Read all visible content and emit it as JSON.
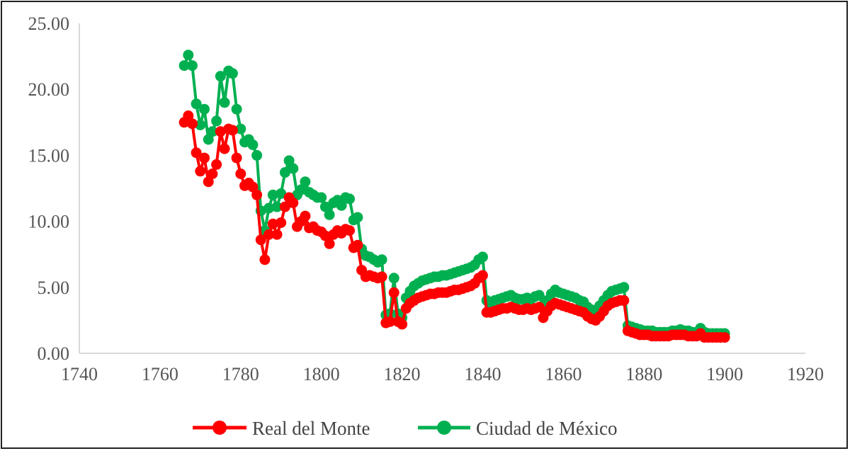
{
  "chart_data": {
    "type": "line",
    "title": "",
    "xlabel": "",
    "ylabel": "",
    "xlim": [
      1740,
      1920
    ],
    "ylim": [
      0,
      25
    ],
    "x_ticks": [
      "1740",
      "1760",
      "1780",
      "1800",
      "1820",
      "1840",
      "1860",
      "1880",
      "1900",
      "1920"
    ],
    "y_ticks": [
      "0.00",
      "5.00",
      "10.00",
      "15.00",
      "20.00",
      "25.00"
    ],
    "grid": false,
    "legend": "bottom",
    "markers": true,
    "series": [
      {
        "name": "Real del Monte",
        "color": "#ff0000",
        "x": [
          1766,
          1767,
          1768,
          1769,
          1770,
          1771,
          1772,
          1773,
          1774,
          1775,
          1776,
          1777,
          1778,
          1779,
          1780,
          1781,
          1782,
          1783,
          1784,
          1785,
          1786,
          1787,
          1788,
          1789,
          1790,
          1791,
          1792,
          1793,
          1794,
          1795,
          1796,
          1797,
          1798,
          1799,
          1800,
          1801,
          1802,
          1803,
          1804,
          1805,
          1806,
          1807,
          1808,
          1809,
          1810,
          1811,
          1812,
          1813,
          1814,
          1815,
          1816,
          1817,
          1818,
          1819,
          1820,
          1821,
          1822,
          1823,
          1824,
          1825,
          1826,
          1827,
          1828,
          1829,
          1830,
          1831,
          1832,
          1833,
          1834,
          1835,
          1836,
          1837,
          1838,
          1839,
          1840,
          1841,
          1842,
          1843,
          1844,
          1845,
          1846,
          1847,
          1848,
          1849,
          1850,
          1851,
          1852,
          1853,
          1854,
          1855,
          1856,
          1857,
          1858,
          1859,
          1860,
          1861,
          1862,
          1863,
          1864,
          1865,
          1866,
          1867,
          1868,
          1869,
          1870,
          1871,
          1872,
          1873,
          1874,
          1875,
          1876,
          1877,
          1878,
          1879,
          1880,
          1881,
          1882,
          1883,
          1884,
          1885,
          1886,
          1887,
          1888,
          1889,
          1890,
          1891,
          1892,
          1893,
          1894,
          1895,
          1896,
          1897,
          1898,
          1899,
          1900
        ],
        "values": [
          17.5,
          18.0,
          17.4,
          15.2,
          13.8,
          14.8,
          13.0,
          13.6,
          14.3,
          16.8,
          15.5,
          17.0,
          16.9,
          14.8,
          13.6,
          12.7,
          12.9,
          12.6,
          12.0,
          8.6,
          7.1,
          9.0,
          9.8,
          9.0,
          9.9,
          11.1,
          11.8,
          11.4,
          9.6,
          10.0,
          10.4,
          9.5,
          9.6,
          9.3,
          9.2,
          8.9,
          8.3,
          9.0,
          9.3,
          9.1,
          9.4,
          9.3,
          8.0,
          8.2,
          6.3,
          5.8,
          5.9,
          5.8,
          5.7,
          5.8,
          2.3,
          2.4,
          4.6,
          2.4,
          2.2,
          3.4,
          3.8,
          4.0,
          4.2,
          4.3,
          4.4,
          4.5,
          4.5,
          4.6,
          4.6,
          4.6,
          4.7,
          4.8,
          4.8,
          4.9,
          5.0,
          5.1,
          5.3,
          5.7,
          5.9,
          3.1,
          3.1,
          3.2,
          3.3,
          3.4,
          3.4,
          3.5,
          3.4,
          3.3,
          3.3,
          3.4,
          3.3,
          3.4,
          3.5,
          2.7,
          3.2,
          3.6,
          3.8,
          3.7,
          3.6,
          3.5,
          3.4,
          3.3,
          3.2,
          3.1,
          2.8,
          2.6,
          2.5,
          2.8,
          3.2,
          3.6,
          3.8,
          3.9,
          4.0,
          4.0,
          1.7,
          1.6,
          1.5,
          1.4,
          1.4,
          1.4,
          1.3,
          1.3,
          1.3,
          1.3,
          1.3,
          1.4,
          1.4,
          1.4,
          1.4,
          1.3,
          1.3,
          1.3,
          1.5,
          1.2,
          1.2,
          1.2,
          1.2,
          1.2,
          1.2
        ]
      },
      {
        "name": "Ciudad de México",
        "color": "#00b050",
        "x": [
          1766,
          1767,
          1768,
          1769,
          1770,
          1771,
          1772,
          1773,
          1774,
          1775,
          1776,
          1777,
          1778,
          1779,
          1780,
          1781,
          1782,
          1783,
          1784,
          1785,
          1786,
          1787,
          1788,
          1789,
          1790,
          1791,
          1792,
          1793,
          1794,
          1795,
          1796,
          1797,
          1798,
          1799,
          1800,
          1801,
          1802,
          1803,
          1804,
          1805,
          1806,
          1807,
          1808,
          1809,
          1810,
          1811,
          1812,
          1813,
          1814,
          1815,
          1816,
          1817,
          1818,
          1819,
          1820,
          1821,
          1822,
          1823,
          1824,
          1825,
          1826,
          1827,
          1828,
          1829,
          1830,
          1831,
          1832,
          1833,
          1834,
          1835,
          1836,
          1837,
          1838,
          1839,
          1840,
          1841,
          1842,
          1843,
          1844,
          1845,
          1846,
          1847,
          1848,
          1849,
          1850,
          1851,
          1852,
          1853,
          1854,
          1855,
          1856,
          1857,
          1858,
          1859,
          1860,
          1861,
          1862,
          1863,
          1864,
          1865,
          1866,
          1867,
          1868,
          1869,
          1870,
          1871,
          1872,
          1873,
          1874,
          1875,
          1876,
          1877,
          1878,
          1879,
          1880,
          1881,
          1882,
          1883,
          1884,
          1885,
          1886,
          1887,
          1888,
          1889,
          1890,
          1891,
          1892,
          1893,
          1894,
          1895,
          1896,
          1897,
          1898,
          1899,
          1900
        ],
        "values": [
          21.8,
          22.6,
          21.8,
          18.9,
          17.3,
          18.5,
          16.2,
          16.8,
          17.6,
          21.0,
          19.0,
          21.4,
          21.2,
          18.5,
          17.0,
          16.0,
          16.2,
          15.8,
          15.0,
          10.8,
          9.3,
          11.0,
          12.0,
          11.1,
          12.1,
          13.7,
          14.6,
          14.0,
          12.0,
          12.4,
          13.0,
          12.2,
          12.0,
          11.8,
          11.8,
          11.1,
          10.5,
          11.4,
          11.6,
          11.2,
          11.8,
          11.7,
          10.1,
          10.3,
          7.9,
          7.4,
          7.3,
          7.1,
          6.9,
          7.1,
          2.9,
          3.0,
          5.7,
          3.0,
          2.7,
          4.2,
          4.7,
          5.1,
          5.3,
          5.5,
          5.6,
          5.7,
          5.8,
          5.8,
          5.9,
          5.9,
          6.0,
          6.1,
          6.2,
          6.3,
          6.4,
          6.5,
          6.7,
          7.1,
          7.3,
          4.0,
          3.8,
          4.0,
          4.1,
          4.2,
          4.3,
          4.4,
          4.2,
          4.1,
          4.1,
          4.2,
          4.1,
          4.3,
          4.4,
          3.4,
          4.0,
          4.5,
          4.8,
          4.6,
          4.5,
          4.4,
          4.3,
          4.2,
          4.0,
          3.9,
          3.5,
          3.3,
          3.2,
          3.6,
          4.0,
          4.4,
          4.7,
          4.8,
          4.9,
          5.0,
          2.1,
          2.0,
          1.9,
          1.8,
          1.7,
          1.7,
          1.7,
          1.6,
          1.6,
          1.6,
          1.6,
          1.7,
          1.7,
          1.8,
          1.7,
          1.7,
          1.6,
          1.6,
          1.9,
          1.6,
          1.5,
          1.5,
          1.5,
          1.5,
          1.5
        ]
      }
    ]
  }
}
